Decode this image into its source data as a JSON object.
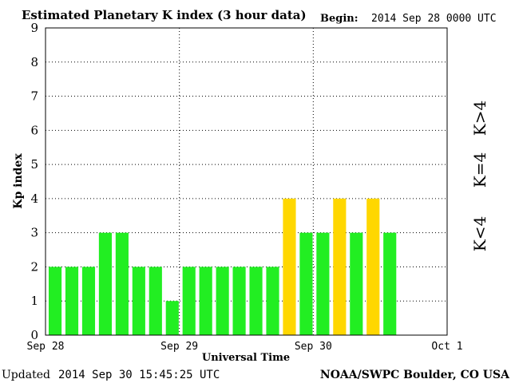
{
  "header": {
    "title": "Estimated Planetary K index (3 hour data)",
    "begin_label": "Begin:",
    "begin_value": "2014 Sep 28 0000 UTC"
  },
  "footer": {
    "updated_label": "Updated",
    "updated_value": "2014 Sep 30 15:45:25 UTC",
    "source": "NOAA/SWPC Boulder, CO USA"
  },
  "legend": {
    "low": "K<4",
    "equal": "K=4",
    "high": "K>4"
  },
  "colors": {
    "low": "#22ee22",
    "equal": "#ffd700",
    "high": "#ee2222"
  },
  "chart_data": {
    "type": "bar",
    "title": "Estimated Planetary K index (3 hour data)",
    "xlabel": "Universal Time",
    "ylabel": "Kp index",
    "ylim": [
      0,
      9
    ],
    "yticks": [
      0,
      1,
      2,
      3,
      4,
      5,
      6,
      7,
      8,
      9
    ],
    "xticks": [
      "Sep 28",
      "Sep 29",
      "Sep 30",
      "Oct 1"
    ],
    "x_range_days": 3,
    "interval_hours": 3,
    "grid": true,
    "values": [
      2,
      2,
      2,
      3,
      3,
      2,
      2,
      1,
      2,
      2,
      2,
      2,
      2,
      2,
      4,
      3,
      3,
      4,
      3,
      4,
      3
    ]
  }
}
